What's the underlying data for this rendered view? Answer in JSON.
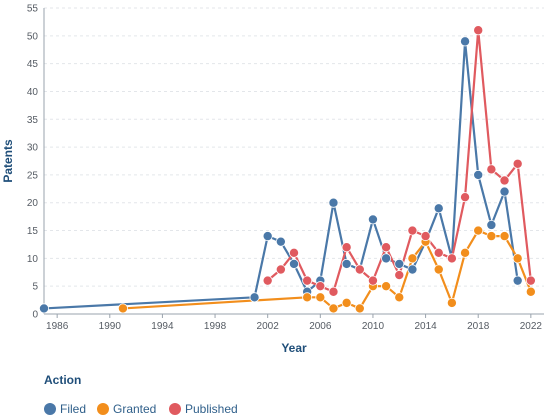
{
  "chart_data": {
    "type": "line",
    "xlabel": "Year",
    "ylabel": "Patents",
    "xlim": [
      1985,
      2023
    ],
    "ylim": [
      0,
      55
    ],
    "x_ticks": [
      1986,
      1990,
      1994,
      1998,
      2002,
      2006,
      2010,
      2014,
      2018,
      2022
    ],
    "y_ticks": [
      0,
      5,
      10,
      15,
      20,
      25,
      30,
      35,
      40,
      45,
      50,
      55
    ],
    "grid": "horizontal",
    "legend": {
      "title": "Action",
      "placement": "bottom-left"
    },
    "series": [
      {
        "name": "Filed",
        "color": "#4a78a8",
        "points": [
          [
            1985,
            1
          ],
          [
            2001,
            3
          ],
          [
            2002,
            14
          ],
          [
            2003,
            13
          ],
          [
            2004,
            9
          ],
          [
            2005,
            4
          ],
          [
            2006,
            6
          ],
          [
            2007,
            20
          ],
          [
            2008,
            9
          ],
          [
            2009,
            8
          ],
          [
            2010,
            17
          ],
          [
            2011,
            10
          ],
          [
            2012,
            9
          ],
          [
            2013,
            8
          ],
          [
            2014,
            13
          ],
          [
            2015,
            19
          ],
          [
            2016,
            10
          ],
          [
            2017,
            49
          ],
          [
            2018,
            25
          ],
          [
            2019,
            16
          ],
          [
            2020,
            22
          ],
          [
            2021,
            6
          ]
        ]
      },
      {
        "name": "Granted",
        "color": "#f28e1c",
        "points": [
          [
            1991,
            1
          ],
          [
            2005,
            3
          ],
          [
            2006,
            3
          ],
          [
            2007,
            1
          ],
          [
            2008,
            2
          ],
          [
            2009,
            1
          ],
          [
            2010,
            5
          ],
          [
            2011,
            5
          ],
          [
            2012,
            3
          ],
          [
            2013,
            10
          ],
          [
            2014,
            13
          ],
          [
            2015,
            8
          ],
          [
            2016,
            2
          ],
          [
            2017,
            11
          ],
          [
            2018,
            15
          ],
          [
            2019,
            14
          ],
          [
            2020,
            14
          ],
          [
            2021,
            10
          ],
          [
            2022,
            4
          ]
        ]
      },
      {
        "name": "Published",
        "color": "#e05a5f",
        "points": [
          [
            2002,
            6
          ],
          [
            2003,
            8
          ],
          [
            2004,
            11
          ],
          [
            2005,
            6
          ],
          [
            2006,
            5
          ],
          [
            2007,
            4
          ],
          [
            2008,
            12
          ],
          [
            2009,
            8
          ],
          [
            2010,
            6
          ],
          [
            2011,
            12
          ],
          [
            2012,
            7
          ],
          [
            2013,
            15
          ],
          [
            2014,
            14
          ],
          [
            2015,
            11
          ],
          [
            2016,
            10
          ],
          [
            2017,
            21
          ],
          [
            2018,
            51
          ],
          [
            2019,
            26
          ],
          [
            2020,
            24
          ],
          [
            2021,
            27
          ],
          [
            2022,
            6
          ]
        ]
      }
    ]
  }
}
